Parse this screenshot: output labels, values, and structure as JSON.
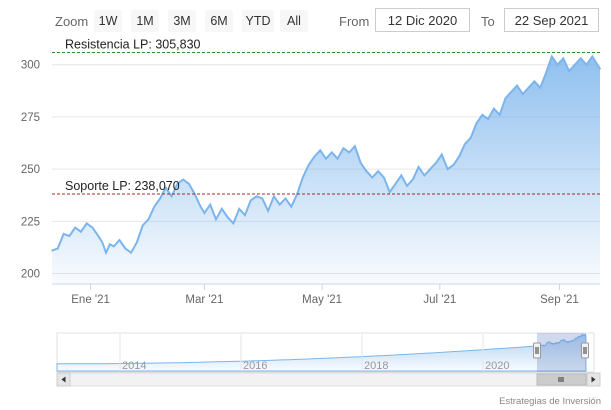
{
  "range_selector": {
    "zoom_label": "Zoom",
    "buttons": [
      "1W",
      "1M",
      "3M",
      "6M",
      "YTD",
      "All"
    ],
    "from_label": "From",
    "from_value": "12 Dic 2020",
    "to_label": "To",
    "to_value": "22 Sep 2021"
  },
  "credits": "Estrategias de Inversión",
  "colors": {
    "line": "#7cb5ec",
    "area_top": "#7cb5ec",
    "resistance": "#2e8b2e",
    "support": "#a52a2a",
    "grid": "#e6e6e6"
  },
  "chart_data": {
    "type": "area",
    "x_range": [
      "2020-12-12",
      "2021-09-22"
    ],
    "y_range": [
      195,
      308
    ],
    "y_ticks": [
      200,
      225,
      250,
      275,
      300
    ],
    "y_tick_labels": [
      "200",
      "225",
      "250",
      "275",
      "300"
    ],
    "x_ticks": [
      "2021-01-01",
      "2021-03-01",
      "2021-05-01",
      "2021-07-01",
      "2021-09-01"
    ],
    "x_tick_labels": [
      "Ene '21",
      "Mar '21",
      "May '21",
      "Jul '21",
      "Sep '21"
    ],
    "grid": true,
    "series": [
      {
        "values": [
          [
            "2020-12-12",
            211
          ],
          [
            "2020-12-15",
            212
          ],
          [
            "2020-12-18",
            219
          ],
          [
            "2020-12-21",
            218
          ],
          [
            "2020-12-24",
            222
          ],
          [
            "2020-12-27",
            220
          ],
          [
            "2020-12-30",
            224
          ],
          [
            "2021-01-02",
            222
          ],
          [
            "2021-01-05",
            218
          ],
          [
            "2021-01-07",
            215
          ],
          [
            "2021-01-09",
            210
          ],
          [
            "2021-01-11",
            214
          ],
          [
            "2021-01-13",
            213
          ],
          [
            "2021-01-16",
            216
          ],
          [
            "2021-01-19",
            212
          ],
          [
            "2021-01-22",
            210
          ],
          [
            "2021-01-25",
            215
          ],
          [
            "2021-01-28",
            223
          ],
          [
            "2021-01-31",
            226
          ],
          [
            "2021-02-03",
            232
          ],
          [
            "2021-02-06",
            236
          ],
          [
            "2021-02-09",
            241
          ],
          [
            "2021-02-12",
            237
          ],
          [
            "2021-02-15",
            243
          ],
          [
            "2021-02-18",
            245
          ],
          [
            "2021-02-21",
            243
          ],
          [
            "2021-02-24",
            238
          ],
          [
            "2021-02-27",
            232
          ],
          [
            "2021-03-01",
            229
          ],
          [
            "2021-03-04",
            233
          ],
          [
            "2021-03-07",
            226
          ],
          [
            "2021-03-10",
            231
          ],
          [
            "2021-03-13",
            227
          ],
          [
            "2021-03-16",
            224
          ],
          [
            "2021-03-19",
            231
          ],
          [
            "2021-03-22",
            228
          ],
          [
            "2021-03-25",
            235
          ],
          [
            "2021-03-28",
            237
          ],
          [
            "2021-03-31",
            236
          ],
          [
            "2021-04-03",
            230
          ],
          [
            "2021-04-06",
            237
          ],
          [
            "2021-04-09",
            233
          ],
          [
            "2021-04-12",
            236
          ],
          [
            "2021-04-15",
            232
          ],
          [
            "2021-04-18",
            238
          ],
          [
            "2021-04-21",
            246
          ],
          [
            "2021-04-24",
            252
          ],
          [
            "2021-04-27",
            256
          ],
          [
            "2021-04-30",
            259
          ],
          [
            "2021-05-03",
            255
          ],
          [
            "2021-05-06",
            258
          ],
          [
            "2021-05-09",
            255
          ],
          [
            "2021-05-12",
            260
          ],
          [
            "2021-05-15",
            258
          ],
          [
            "2021-05-18",
            261
          ],
          [
            "2021-05-21",
            253
          ],
          [
            "2021-05-24",
            249
          ],
          [
            "2021-05-27",
            246
          ],
          [
            "2021-05-30",
            249
          ],
          [
            "2021-06-02",
            246
          ],
          [
            "2021-06-05",
            239
          ],
          [
            "2021-06-08",
            243
          ],
          [
            "2021-06-11",
            247
          ],
          [
            "2021-06-14",
            242
          ],
          [
            "2021-06-17",
            245
          ],
          [
            "2021-06-20",
            251
          ],
          [
            "2021-06-23",
            247
          ],
          [
            "2021-06-26",
            250
          ],
          [
            "2021-06-29",
            253
          ],
          [
            "2021-07-02",
            257
          ],
          [
            "2021-07-05",
            250
          ],
          [
            "2021-07-08",
            252
          ],
          [
            "2021-07-11",
            256
          ],
          [
            "2021-07-14",
            262
          ],
          [
            "2021-07-17",
            265
          ],
          [
            "2021-07-20",
            272
          ],
          [
            "2021-07-23",
            276
          ],
          [
            "2021-07-26",
            274
          ],
          [
            "2021-07-29",
            279
          ],
          [
            "2021-08-01",
            276
          ],
          [
            "2021-08-04",
            284
          ],
          [
            "2021-08-07",
            287
          ],
          [
            "2021-08-10",
            290
          ],
          [
            "2021-08-13",
            286
          ],
          [
            "2021-08-16",
            289
          ],
          [
            "2021-08-19",
            292
          ],
          [
            "2021-08-22",
            289
          ],
          [
            "2021-08-25",
            296
          ],
          [
            "2021-08-28",
            304
          ],
          [
            "2021-08-31",
            300
          ],
          [
            "2021-09-03",
            303
          ],
          [
            "2021-09-06",
            297
          ],
          [
            "2021-09-09",
            300
          ],
          [
            "2021-09-12",
            303
          ],
          [
            "2021-09-15",
            300
          ],
          [
            "2021-09-18",
            304
          ],
          [
            "2021-09-22",
            298
          ]
        ]
      }
    ],
    "annotations": [
      {
        "label": "Resistencia LP: 305,830",
        "value": 305.83
      },
      {
        "label": "Soporte LP: 238,070",
        "value": 238.07
      }
    ],
    "navigator": {
      "x_tick_labels": [
        "2014",
        "2016",
        "2018",
        "2020"
      ],
      "selected_range": [
        "2020-12-12",
        "2021-09-22"
      ]
    }
  }
}
